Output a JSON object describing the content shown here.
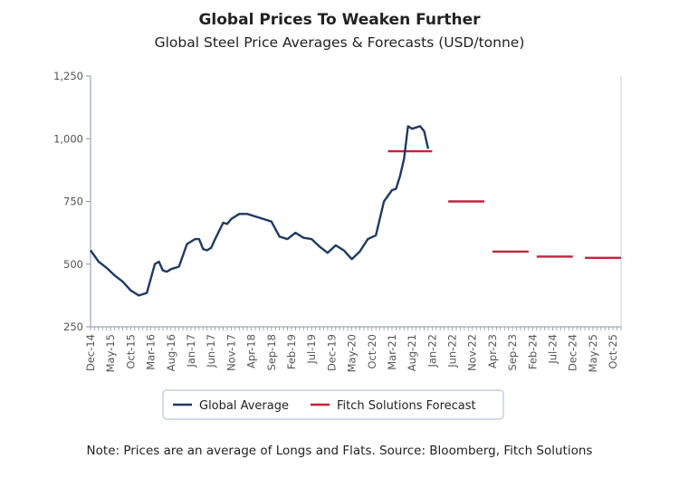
{
  "header": {
    "title": "Global Prices To Weaken Further",
    "subtitle": "Global Steel Price Averages & Forecasts (USD/tonne)"
  },
  "footer": {
    "note": "Note: Prices are an average of Longs and Flats. Source: Bloomberg, Fitch Solutions"
  },
  "colors": {
    "global_average": "#1f3a63",
    "forecast": "#c0243e",
    "axis": "#8a96a8",
    "grid": "#cccccc"
  },
  "chart_data": {
    "type": "line",
    "title": "Global Steel Price Averages & Forecasts (USD/tonne)",
    "xlabel": "",
    "ylabel": "",
    "ylim": [
      250,
      1250
    ],
    "yticks": [
      250,
      500,
      750,
      1000,
      1250
    ],
    "ytick_labels": [
      "250",
      "500",
      "750",
      "1,000",
      "1,250"
    ],
    "xtick_labels": [
      "Dec-14",
      "May-15",
      "Oct-15",
      "Mar-16",
      "Aug-16",
      "Jan-17",
      "Jun-17",
      "Nov-17",
      "Apr-18",
      "Sep-18",
      "Feb-19",
      "Jul-19",
      "Dec-19",
      "May-20",
      "Oct-20",
      "Mar-21",
      "Aug-21",
      "Jan-22",
      "Jun-22",
      "Nov-22",
      "Apr-23",
      "Sep-23",
      "Feb-24",
      "Jul-24",
      "Dec-24",
      "May-25",
      "Oct-25"
    ],
    "x_start": "Dec-14",
    "x_end": "Dec-25",
    "grid": false,
    "legend_position": "bottom",
    "series": [
      {
        "name": "Global Average",
        "x": [
          "Dec-14",
          "Feb-15",
          "Apr-15",
          "Jun-15",
          "Aug-15",
          "Oct-15",
          "Dec-15",
          "Feb-16",
          "Apr-16",
          "May-16",
          "Jun-16",
          "Jul-16",
          "Aug-16",
          "Oct-16",
          "Dec-16",
          "Feb-17",
          "Mar-17",
          "Apr-17",
          "May-17",
          "Jun-17",
          "Jul-17",
          "Sep-17",
          "Oct-17",
          "Nov-17",
          "Jan-18",
          "Mar-18",
          "May-18",
          "Jul-18",
          "Sep-18",
          "Nov-18",
          "Jan-19",
          "Mar-19",
          "May-19",
          "Jul-19",
          "Sep-19",
          "Nov-19",
          "Jan-20",
          "Mar-20",
          "May-20",
          "Jul-20",
          "Sep-20",
          "Nov-20",
          "Jan-21",
          "Mar-21",
          "Apr-21",
          "May-21",
          "Jun-21",
          "Jul-21",
          "Aug-21",
          "Sep-21",
          "Oct-21",
          "Nov-21",
          "Dec-21"
        ],
        "values": [
          555,
          510,
          485,
          455,
          430,
          395,
          375,
          385,
          500,
          510,
          475,
          470,
          480,
          490,
          580,
          600,
          600,
          560,
          555,
          565,
          600,
          665,
          660,
          680,
          700,
          700,
          690,
          680,
          670,
          610,
          600,
          625,
          605,
          600,
          570,
          545,
          575,
          555,
          520,
          550,
          600,
          615,
          750,
          795,
          800,
          850,
          920,
          1050,
          1040,
          1045,
          1050,
          1030,
          960
        ]
      },
      {
        "name": "Fitch Solutions Forecast",
        "segments": [
          {
            "from": "Feb-21",
            "to": "Jan-22",
            "value": 950
          },
          {
            "from": "May-22",
            "to": "Feb-23",
            "value": 750
          },
          {
            "from": "Apr-23",
            "to": "Jan-24",
            "value": 550
          },
          {
            "from": "Mar-24",
            "to": "Dec-24",
            "value": 530
          },
          {
            "from": "Mar-25",
            "to": "Dec-25",
            "value": 525
          }
        ]
      }
    ]
  }
}
